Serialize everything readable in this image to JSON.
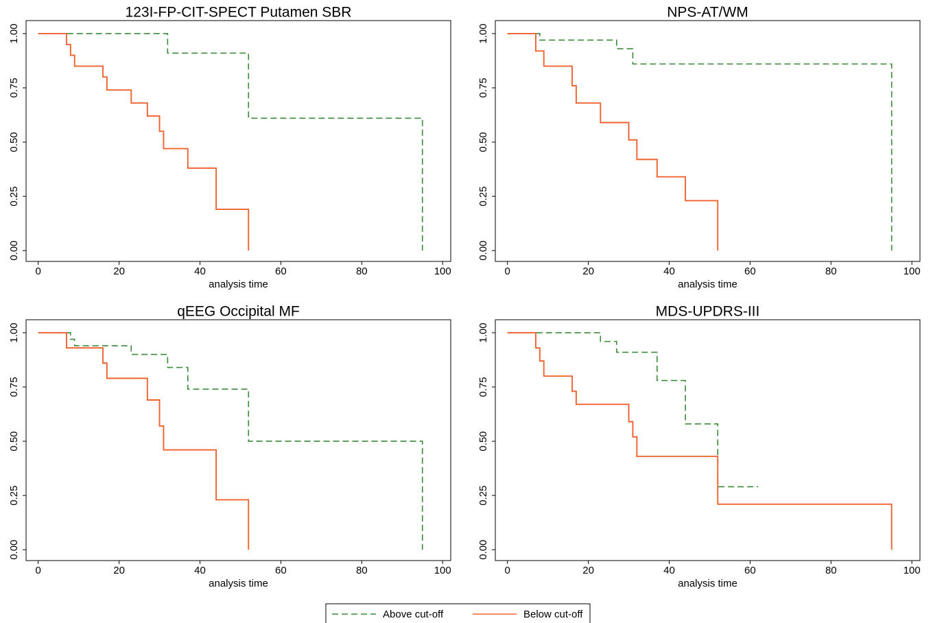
{
  "chart_data": [
    {
      "type": "step",
      "title": "123I-FP-CIT-SPECT Putamen SBR",
      "xlabel": "analysis time",
      "xlim": [
        -3,
        102
      ],
      "ylim": [
        -0.05,
        1.06
      ],
      "xticks": [
        0,
        20,
        40,
        60,
        80,
        100
      ],
      "yticks": [
        {
          "value": 0,
          "label": "0.00"
        },
        {
          "value": 0.25,
          "label": "0.25"
        },
        {
          "value": 0.5,
          "label": "0.50"
        },
        {
          "value": 0.75,
          "label": "0.75"
        },
        {
          "value": 1,
          "label": "1.00"
        }
      ],
      "series": [
        {
          "name": "Above cut-off",
          "color": "#3a8a3a",
          "dashed": true,
          "x": [
            0,
            32,
            52,
            95
          ],
          "values": [
            1,
            0.91,
            0.61,
            0
          ]
        },
        {
          "name": "Below cut-off",
          "color": "#f0622f",
          "dashed": false,
          "x": [
            0,
            7,
            8,
            9,
            16,
            17,
            23,
            27,
            30,
            31,
            37,
            44,
            52
          ],
          "values": [
            1,
            0.95,
            0.9,
            0.85,
            0.8,
            0.74,
            0.68,
            0.62,
            0.55,
            0.47,
            0.38,
            0.19,
            0
          ]
        }
      ]
    },
    {
      "type": "step",
      "title": "NPS-AT/WM",
      "xlabel": "analysis time",
      "xlim": [
        -3,
        102
      ],
      "ylim": [
        -0.05,
        1.06
      ],
      "xticks": [
        0,
        20,
        40,
        60,
        80,
        100
      ],
      "yticks": [
        {
          "value": 0,
          "label": "0.00"
        },
        {
          "value": 0.25,
          "label": "0.25"
        },
        {
          "value": 0.5,
          "label": "0.50"
        },
        {
          "value": 0.75,
          "label": "0.75"
        },
        {
          "value": 1,
          "label": "1.00"
        }
      ],
      "series": [
        {
          "color": "#3a8a3a",
          "dashed": true,
          "x": [
            0,
            8,
            27,
            31,
            95
          ],
          "values": [
            1,
            0.97,
            0.93,
            0.86,
            0
          ]
        },
        {
          "color": "#f0622f",
          "dashed": false,
          "x": [
            0,
            7,
            9,
            16,
            17,
            23,
            30,
            32,
            37,
            44,
            52
          ],
          "values": [
            1,
            0.92,
            0.85,
            0.76,
            0.68,
            0.59,
            0.51,
            0.42,
            0.34,
            0.23,
            0
          ]
        }
      ]
    },
    {
      "type": "step",
      "title": "qEEG Occipital MF",
      "xlabel": "analysis time",
      "xlim": [
        -3,
        102
      ],
      "ylim": [
        -0.05,
        1.06
      ],
      "xticks": [
        0,
        20,
        40,
        60,
        80,
        100
      ],
      "yticks": [
        {
          "value": 0,
          "label": "0.00"
        },
        {
          "value": 0.25,
          "label": "0.25"
        },
        {
          "value": 0.5,
          "label": "0.50"
        },
        {
          "value": 0.75,
          "label": "0.75"
        },
        {
          "value": 1,
          "label": "1.00"
        }
      ],
      "series": [
        {
          "color": "#3a8a3a",
          "dashed": true,
          "x": [
            0,
            8,
            9,
            23,
            32,
            37,
            52,
            95
          ],
          "values": [
            1,
            0.97,
            0.94,
            0.9,
            0.84,
            0.74,
            0.5,
            0
          ]
        },
        {
          "color": "#f0622f",
          "dashed": false,
          "x": [
            0,
            7,
            16,
            17,
            27,
            30,
            31,
            44,
            52
          ],
          "values": [
            1,
            0.93,
            0.86,
            0.79,
            0.69,
            0.57,
            0.46,
            0.23,
            0
          ]
        }
      ]
    },
    {
      "type": "step",
      "title": "MDS-UPDRS-III",
      "xlabel": "analysis time",
      "xlim": [
        -3,
        102
      ],
      "ylim": [
        -0.05,
        1.06
      ],
      "xticks": [
        0,
        20,
        40,
        60,
        80,
        100
      ],
      "yticks": [
        {
          "value": 0,
          "label": "0.00"
        },
        {
          "value": 0.25,
          "label": "0.25"
        },
        {
          "value": 0.5,
          "label": "0.50"
        },
        {
          "value": 0.75,
          "label": "0.75"
        },
        {
          "value": 1,
          "label": "1.00"
        }
      ],
      "series": [
        {
          "color": "#3a8a3a",
          "dashed": true,
          "x": [
            0,
            23,
            27,
            37,
            44,
            52,
            62
          ],
          "values": [
            1,
            0.96,
            0.91,
            0.78,
            0.58,
            0.29,
            0.29
          ]
        },
        {
          "color": "#f0622f",
          "dashed": false,
          "x": [
            0,
            7,
            8,
            9,
            16,
            17,
            30,
            31,
            32,
            52,
            95
          ],
          "values": [
            1,
            0.93,
            0.87,
            0.8,
            0.73,
            0.67,
            0.59,
            0.52,
            0.43,
            0.21,
            0
          ]
        }
      ]
    }
  ]
}
